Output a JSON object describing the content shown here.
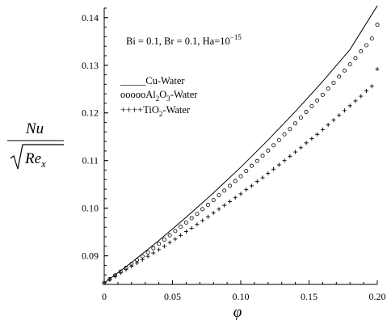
{
  "chart_data": {
    "type": "line",
    "xlabel": "φ",
    "ylabel": {
      "numerator": "Nu",
      "denominator_base": "Re",
      "denominator_subscript": "x"
    },
    "xlim": [
      0,
      0.2
    ],
    "ylim": [
      0.084,
      0.142
    ],
    "x_ticks": [
      "0",
      "0.05",
      "0.10",
      "0.15",
      "0.20"
    ],
    "y_ticks": [
      "0.09",
      "0.10",
      "0.11",
      "0.12",
      "0.13",
      "0.14"
    ],
    "grid": false,
    "annotation": {
      "text": "Bi = 0.1, Br = 0.1, Ha=10",
      "superscript": "−15"
    },
    "legend_position": "upper-left",
    "series": [
      {
        "name": "Cu-Water",
        "marker": "line",
        "legend_prefix": "_____",
        "legend_label": "Cu-Water",
        "x": [
          0,
          0.02,
          0.04,
          0.06,
          0.08,
          0.1,
          0.12,
          0.14,
          0.16,
          0.18,
          0.2
        ],
        "y": [
          0.0843,
          0.0886,
          0.0932,
          0.0981,
          0.1032,
          0.1086,
          0.1143,
          0.1203,
          0.1266,
          0.1333,
          0.1425
        ]
      },
      {
        "name": "Al2O3-Water",
        "marker": "circle",
        "legend_prefix": "ooooo",
        "legend_label_parts": [
          "Al",
          "2",
          "O",
          "3",
          "-Water"
        ],
        "x": [
          0,
          0.004,
          0.008,
          0.012,
          0.016,
          0.02,
          0.024,
          0.028,
          0.032,
          0.036,
          0.04,
          0.044,
          0.048,
          0.052,
          0.056,
          0.06,
          0.064,
          0.068,
          0.072,
          0.076,
          0.08,
          0.084,
          0.088,
          0.092,
          0.096,
          0.1,
          0.104,
          0.108,
          0.112,
          0.116,
          0.12,
          0.124,
          0.128,
          0.132,
          0.136,
          0.14,
          0.144,
          0.148,
          0.152,
          0.156,
          0.16,
          0.164,
          0.168,
          0.172,
          0.176,
          0.18,
          0.184,
          0.188,
          0.192,
          0.196,
          0.2
        ],
        "y": [
          0.0843,
          0.0851,
          0.0859,
          0.0867,
          0.0875,
          0.0883,
          0.0891,
          0.0899,
          0.0907,
          0.0916,
          0.0925,
          0.0934,
          0.0943,
          0.0952,
          0.0961,
          0.097,
          0.0979,
          0.0988,
          0.0998,
          0.1007,
          0.1017,
          0.1027,
          0.1037,
          0.1047,
          0.1057,
          0.1067,
          0.1078,
          0.1089,
          0.1099,
          0.111,
          0.1121,
          0.1132,
          0.1143,
          0.1155,
          0.1166,
          0.1178,
          0.119,
          0.1202,
          0.1214,
          0.1226,
          0.1238,
          0.1251,
          0.1263,
          0.1276,
          0.1289,
          0.1302,
          0.1315,
          0.1329,
          0.1342,
          0.1356,
          0.1385
        ]
      },
      {
        "name": "TiO2-Water",
        "marker": "plus",
        "legend_prefix": "++++",
        "legend_label_parts": [
          "TiO",
          "2",
          "-Water"
        ],
        "x": [
          0,
          0.004,
          0.008,
          0.012,
          0.016,
          0.02,
          0.024,
          0.028,
          0.032,
          0.036,
          0.04,
          0.044,
          0.048,
          0.052,
          0.056,
          0.06,
          0.064,
          0.068,
          0.072,
          0.076,
          0.08,
          0.084,
          0.088,
          0.092,
          0.096,
          0.1,
          0.104,
          0.108,
          0.112,
          0.116,
          0.12,
          0.124,
          0.128,
          0.132,
          0.136,
          0.14,
          0.144,
          0.148,
          0.152,
          0.156,
          0.16,
          0.164,
          0.168,
          0.172,
          0.176,
          0.18,
          0.184,
          0.188,
          0.192,
          0.196,
          0.2
        ],
        "y": [
          0.0843,
          0.085,
          0.0857,
          0.0864,
          0.0871,
          0.0878,
          0.0885,
          0.0892,
          0.0899,
          0.0906,
          0.0913,
          0.092,
          0.0928,
          0.0935,
          0.0943,
          0.0951,
          0.0958,
          0.0966,
          0.0974,
          0.0982,
          0.099,
          0.0998,
          0.1006,
          0.1014,
          0.1022,
          0.103,
          0.1039,
          0.1047,
          0.1056,
          0.1064,
          0.1073,
          0.1082,
          0.1091,
          0.11,
          0.1109,
          0.1118,
          0.1127,
          0.1137,
          0.1146,
          0.1155,
          0.1165,
          0.1175,
          0.1185,
          0.1195,
          0.1205,
          0.1215,
          0.1225,
          0.1235,
          0.1246,
          0.1256,
          0.1292
        ]
      }
    ]
  }
}
